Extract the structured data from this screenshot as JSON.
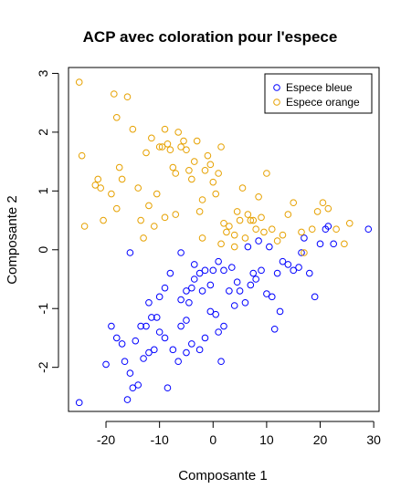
{
  "chart_data": {
    "type": "scatter",
    "title": "ACP avec coloration pour l'espece",
    "xlabel": "Composante 1",
    "ylabel": "Composante 2",
    "xlim": [
      -27,
      31
    ],
    "ylim": [
      -2.75,
      3.1
    ],
    "xticks": [
      -20,
      -10,
      0,
      10,
      20,
      30
    ],
    "yticks": [
      -2,
      -1,
      0,
      1,
      2,
      3
    ],
    "legend_position": "top-right",
    "series": [
      {
        "name": "Espece bleue",
        "color": "#0000ff",
        "points": [
          [
            -25,
            -2.6
          ],
          [
            -16,
            -2.55
          ],
          [
            -20,
            -1.95
          ],
          [
            -19,
            -1.3
          ],
          [
            -18,
            -1.5
          ],
          [
            -17,
            -1.6
          ],
          [
            -16.5,
            -1.9
          ],
          [
            -15.5,
            -2.1
          ],
          [
            -15,
            -2.35
          ],
          [
            -14,
            -2.3
          ],
          [
            -13,
            -1.85
          ],
          [
            -14.5,
            -1.55
          ],
          [
            -13.5,
            -1.3
          ],
          [
            -12.5,
            -1.3
          ],
          [
            -12,
            -1.75
          ],
          [
            -11,
            -1.7
          ],
          [
            -10,
            -1.4
          ],
          [
            -10.5,
            -1.15
          ],
          [
            -11.5,
            -1.15
          ],
          [
            -9,
            -1.5
          ],
          [
            -8.5,
            -2.35
          ],
          [
            -12,
            -0.9
          ],
          [
            -10,
            -0.8
          ],
          [
            -9,
            -0.65
          ],
          [
            -8,
            -0.4
          ],
          [
            -7.5,
            -1.7
          ],
          [
            -6.5,
            -1.9
          ],
          [
            -5,
            -1.75
          ],
          [
            -6,
            -1.3
          ],
          [
            -5,
            -1.2
          ],
          [
            -4,
            -1.6
          ],
          [
            -2.5,
            -1.7
          ],
          [
            -1.5,
            -1.5
          ],
          [
            -0.5,
            -1.05
          ],
          [
            0.5,
            -1.1
          ],
          [
            1,
            -1.4
          ],
          [
            2,
            -1.3
          ],
          [
            1.5,
            -1.9
          ],
          [
            -4.5,
            -0.9
          ],
          [
            -4,
            -0.65
          ],
          [
            -3.5,
            -0.5
          ],
          [
            -2.5,
            -0.4
          ],
          [
            -1.5,
            -0.35
          ],
          [
            -0.5,
            -0.6
          ],
          [
            0,
            -0.35
          ],
          [
            1,
            -0.2
          ],
          [
            2,
            -0.35
          ],
          [
            3,
            -0.7
          ],
          [
            4,
            -0.95
          ],
          [
            5,
            -0.7
          ],
          [
            6,
            -0.9
          ],
          [
            7,
            -0.6
          ],
          [
            7.5,
            -0.4
          ],
          [
            8,
            -0.5
          ],
          [
            9,
            -0.35
          ],
          [
            10,
            -0.75
          ],
          [
            11,
            -0.8
          ],
          [
            11.5,
            -1.35
          ],
          [
            12.5,
            -1.05
          ],
          [
            12,
            -0.4
          ],
          [
            13,
            -0.2
          ],
          [
            14,
            -0.25
          ],
          [
            15,
            -0.35
          ],
          [
            16,
            -0.3
          ],
          [
            16.5,
            -0.05
          ],
          [
            17,
            0.2
          ],
          [
            18,
            -0.4
          ],
          [
            19,
            -0.8
          ],
          [
            20,
            0.1
          ],
          [
            21,
            0.35
          ],
          [
            21.5,
            0.4
          ],
          [
            22.5,
            0.1
          ],
          [
            29,
            0.35
          ],
          [
            -15.5,
            -0.05
          ],
          [
            -6,
            -0.05
          ],
          [
            -3.5,
            -0.25
          ],
          [
            4.5,
            -0.55
          ],
          [
            6.5,
            0.05
          ],
          [
            8.5,
            0.15
          ],
          [
            10.5,
            0.05
          ],
          [
            3.5,
            -0.3
          ],
          [
            -2,
            -0.7
          ],
          [
            -6,
            -0.85
          ],
          [
            -5,
            -0.7
          ]
        ]
      },
      {
        "name": "Espece orange",
        "color": "#e6a100",
        "points": [
          [
            -25,
            2.85
          ],
          [
            -24.5,
            1.6
          ],
          [
            -24,
            0.4
          ],
          [
            -22,
            1.1
          ],
          [
            -21.5,
            1.2
          ],
          [
            -21,
            1.05
          ],
          [
            -20.5,
            0.5
          ],
          [
            -19,
            0.95
          ],
          [
            -18.5,
            2.65
          ],
          [
            -18,
            2.25
          ],
          [
            -17.5,
            1.4
          ],
          [
            -18,
            0.7
          ],
          [
            -17,
            1.2
          ],
          [
            -16,
            2.6
          ],
          [
            -15,
            2.05
          ],
          [
            -14,
            1.05
          ],
          [
            -13.5,
            0.5
          ],
          [
            -12.5,
            1.65
          ],
          [
            -12,
            0.75
          ],
          [
            -11.5,
            1.9
          ],
          [
            -11,
            0.4
          ],
          [
            -10.5,
            0.95
          ],
          [
            -10,
            1.75
          ],
          [
            -9.5,
            1.75
          ],
          [
            -9,
            2.05
          ],
          [
            -9,
            0.55
          ],
          [
            -8.5,
            1.8
          ],
          [
            -8,
            1.7
          ],
          [
            -7.5,
            1.4
          ],
          [
            -7,
            1.3
          ],
          [
            -6.5,
            2.0
          ],
          [
            -6,
            1.75
          ],
          [
            -5.5,
            1.85
          ],
          [
            -5,
            1.7
          ],
          [
            -4.5,
            1.35
          ],
          [
            -4,
            1.2
          ],
          [
            -3.5,
            1.5
          ],
          [
            -3,
            1.85
          ],
          [
            -2.5,
            0.65
          ],
          [
            -2,
            0.85
          ],
          [
            -1.5,
            1.35
          ],
          [
            -1,
            1.6
          ],
          [
            -0.5,
            1.45
          ],
          [
            0,
            1.15
          ],
          [
            0.5,
            0.95
          ],
          [
            1,
            1.3
          ],
          [
            1.5,
            1.75
          ],
          [
            2,
            0.45
          ],
          [
            2.5,
            0.3
          ],
          [
            3,
            0.4
          ],
          [
            4,
            0.25
          ],
          [
            4.5,
            0.65
          ],
          [
            5,
            0.5
          ],
          [
            5.5,
            1.05
          ],
          [
            6,
            0.2
          ],
          [
            6.5,
            0.6
          ],
          [
            7,
            0.5
          ],
          [
            7.5,
            0.5
          ],
          [
            8,
            0.35
          ],
          [
            8.5,
            0.9
          ],
          [
            9,
            0.55
          ],
          [
            9.5,
            0.3
          ],
          [
            10,
            1.3
          ],
          [
            11,
            0.35
          ],
          [
            12,
            0.15
          ],
          [
            13,
            0.25
          ],
          [
            14,
            0.6
          ],
          [
            15,
            0.8
          ],
          [
            16.5,
            0.3
          ],
          [
            17,
            -0.05
          ],
          [
            18.5,
            0.35
          ],
          [
            19.5,
            0.65
          ],
          [
            20.5,
            0.8
          ],
          [
            21.5,
            0.7
          ],
          [
            23,
            0.35
          ],
          [
            24.5,
            0.1
          ],
          [
            25.5,
            0.45
          ],
          [
            -13,
            0.2
          ],
          [
            -7,
            0.6
          ],
          [
            -2,
            0.2
          ],
          [
            1.5,
            0.1
          ],
          [
            4,
            0.05
          ]
        ]
      }
    ]
  }
}
